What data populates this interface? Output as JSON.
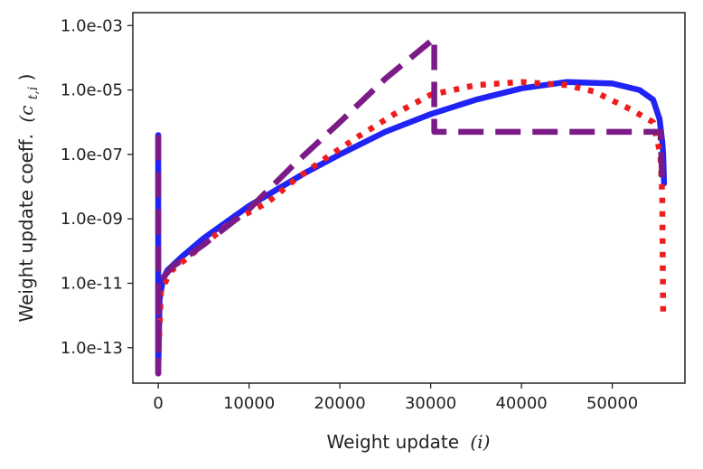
{
  "chart_data": {
    "type": "line",
    "title": "",
    "xlabel": {
      "text": "Weight update",
      "symbol": "(i)"
    },
    "ylabel": {
      "text": "Weight update coeff.",
      "symbol": "(c",
      "subscript": "t,i",
      "close": ")"
    },
    "xlim": [
      -2800,
      58000
    ],
    "ylim_log10": [
      -14.1,
      -2.6
    ],
    "x_ticks": [
      {
        "value": 0,
        "label": "0"
      },
      {
        "value": 10000,
        "label": "10000"
      },
      {
        "value": 20000,
        "label": "20000"
      },
      {
        "value": 30000,
        "label": "30000"
      },
      {
        "value": 40000,
        "label": "40000"
      },
      {
        "value": 50000,
        "label": "50000"
      }
    ],
    "y_ticks": [
      {
        "exp": -3,
        "label": "1.0e-03"
      },
      {
        "exp": -5,
        "label": "1.0e-05"
      },
      {
        "exp": -7,
        "label": "1.0e-07"
      },
      {
        "exp": -9,
        "label": "1.0e-09"
      },
      {
        "exp": -11,
        "label": "1.0e-11"
      },
      {
        "exp": -13,
        "label": "1.0e-13"
      }
    ],
    "grid": false,
    "legend": "none",
    "series": [
      {
        "name": "solid",
        "style": "solid",
        "color": "#1f23f5",
        "points_log10": [
          [
            0,
            -13.8
          ],
          [
            0,
            -6.4
          ],
          [
            0,
            -13.8
          ],
          [
            150,
            -11.5
          ],
          [
            500,
            -10.9
          ],
          [
            1000,
            -10.6
          ],
          [
            2500,
            -10.2
          ],
          [
            5000,
            -9.6
          ],
          [
            8000,
            -9.0
          ],
          [
            10000,
            -8.6
          ],
          [
            13000,
            -8.1
          ],
          [
            16000,
            -7.6
          ],
          [
            20000,
            -7.0
          ],
          [
            25000,
            -6.3
          ],
          [
            30000,
            -5.75
          ],
          [
            35000,
            -5.3
          ],
          [
            40000,
            -4.95
          ],
          [
            45000,
            -4.75
          ],
          [
            50000,
            -4.8
          ],
          [
            53000,
            -5.0
          ],
          [
            54500,
            -5.3
          ],
          [
            55200,
            -5.9
          ],
          [
            55500,
            -6.6
          ],
          [
            55600,
            -7.0
          ],
          [
            55700,
            -7.9
          ]
        ]
      },
      {
        "name": "dotted",
        "style": "dotted",
        "color": "#ee1c1c",
        "points_log10": [
          [
            0,
            -13.5
          ],
          [
            300,
            -11.2
          ],
          [
            1500,
            -10.6
          ],
          [
            5000,
            -9.8
          ],
          [
            8000,
            -9.1
          ],
          [
            12000,
            -8.5
          ],
          [
            15000,
            -7.8
          ],
          [
            18000,
            -7.2
          ],
          [
            22000,
            -6.45
          ],
          [
            26000,
            -5.75
          ],
          [
            30000,
            -5.15
          ],
          [
            35000,
            -4.85
          ],
          [
            40000,
            -4.75
          ],
          [
            45000,
            -4.85
          ],
          [
            48000,
            -5.05
          ],
          [
            52000,
            -5.6
          ],
          [
            54500,
            -6.0
          ],
          [
            55300,
            -7.0
          ],
          [
            55500,
            -8.3
          ],
          [
            55600,
            -12.0
          ]
        ]
      },
      {
        "name": "dashed",
        "style": "dashed",
        "color": "#7b1b87",
        "points_log10": [
          [
            0,
            -6.4
          ],
          [
            0,
            -13.8
          ],
          [
            0,
            -11.3
          ],
          [
            300,
            -10.9
          ],
          [
            1500,
            -10.5
          ],
          [
            5000,
            -9.8
          ],
          [
            10000,
            -8.7
          ],
          [
            15000,
            -7.3
          ],
          [
            20000,
            -6.0
          ],
          [
            25000,
            -4.65
          ],
          [
            30400,
            -3.4
          ],
          [
            30400,
            -6.3
          ],
          [
            55300,
            -6.3
          ],
          [
            55500,
            -7.9
          ]
        ]
      }
    ]
  }
}
